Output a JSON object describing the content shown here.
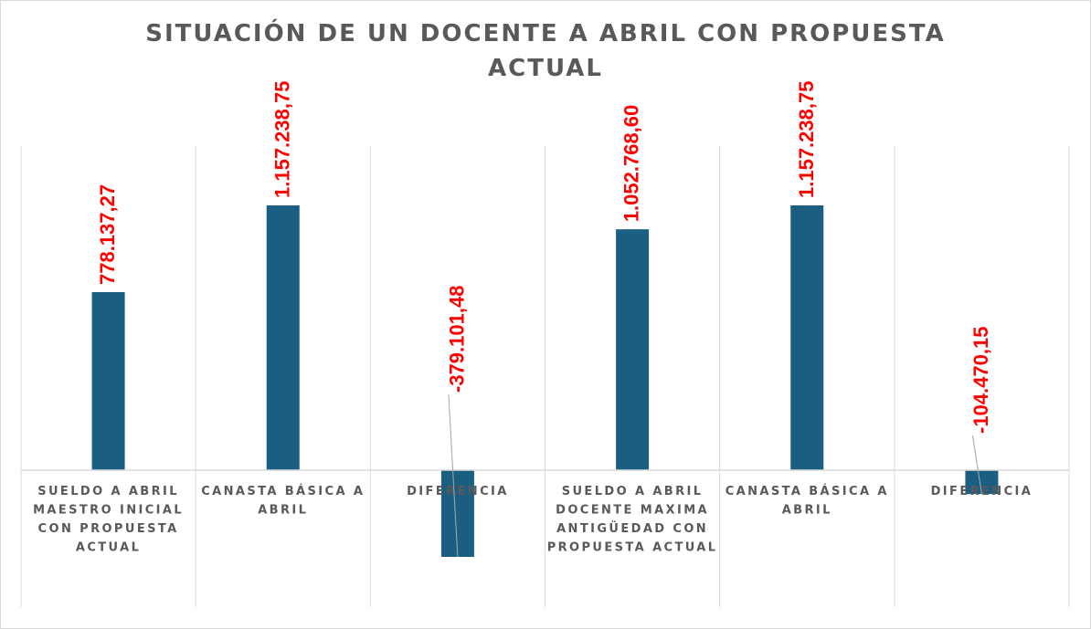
{
  "chart_data": {
    "type": "bar",
    "title_lines": [
      "SITUACIÓN DE UN DOCENTE A ABRIL CON PROPUESTA",
      "ACTUAL"
    ],
    "categories": [
      [
        "SUELDO A ABRIL",
        "MAESTRO INICIAL",
        "CON PROPUESTA",
        "ACTUAL"
      ],
      [
        "CANASTA BÁSICA  A",
        "ABRIL"
      ],
      [
        "DIFERENCIA"
      ],
      [
        "SUELDO A ABRIL",
        "DOCENTE MAXIMA",
        "ANTIGÜEDAD CON",
        "PROPUESTA ACTUAL"
      ],
      [
        "CANASTA BÁSICA  A",
        "ABRIL"
      ],
      [
        "DIFERENCIA"
      ]
    ],
    "values": [
      778137.27,
      1157238.75,
      -379101.48,
      1052768.6,
      1157238.75,
      -104470.15
    ],
    "data_labels": [
      "778.137,27",
      "1.157.238,75",
      "-379.101,48",
      "1.052.768,60",
      "1.157.238,75",
      "-104.470,15"
    ],
    "ylim": [
      -480000,
      1430000
    ],
    "grid": "vertical-category-separators",
    "legend": "none",
    "colors": {
      "bar": "#1a5f82",
      "label": "#ff0000",
      "axis_text": "#595959",
      "grid": "#d9d9d9"
    }
  }
}
